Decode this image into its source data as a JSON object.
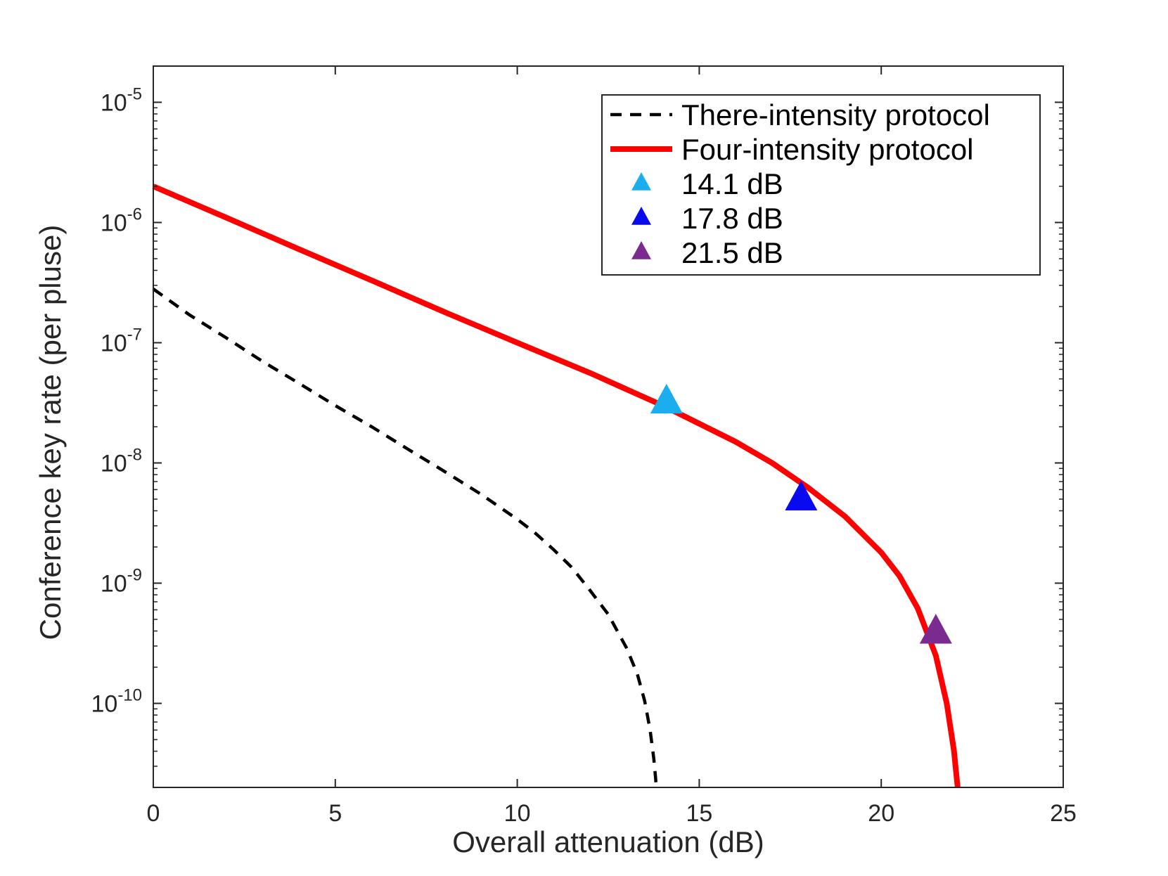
{
  "chart_data": {
    "type": "line",
    "title": "",
    "xlabel": "Overall attenuation (dB)",
    "ylabel": "Conference key rate (per pluse)",
    "xlim": [
      0,
      25
    ],
    "ylim": [
      2e-11,
      2e-05
    ],
    "yscale": "log",
    "xticks": [
      0,
      5,
      10,
      15,
      20,
      25
    ],
    "xtick_labels": [
      "0",
      "5",
      "10",
      "15",
      "20",
      "25"
    ],
    "yticks": [
      {
        "base": "10",
        "exp": "-10",
        "value": 1e-10
      },
      {
        "base": "10",
        "exp": "-9",
        "value": 1e-09
      },
      {
        "base": "10",
        "exp": "-8",
        "value": 1e-08
      },
      {
        "base": "10",
        "exp": "-7",
        "value": 1e-07
      },
      {
        "base": "10",
        "exp": "-6",
        "value": 1e-06
      },
      {
        "base": "10",
        "exp": "-5",
        "value": 1e-05
      }
    ],
    "grid": false,
    "legend_position": "top-right",
    "series": [
      {
        "name": "There-intensity protocol",
        "style": "dashed",
        "color": "#000000",
        "x": [
          0,
          1,
          2,
          3,
          4,
          5,
          6,
          7,
          8,
          9,
          10,
          10.5,
          11,
          11.5,
          12,
          12.5,
          13,
          13.3,
          13.5,
          13.65,
          13.75,
          13.8,
          13.82
        ],
        "y": [
          2.8e-07,
          1.7e-07,
          1.1e-07,
          7e-08,
          4.6e-08,
          3e-08,
          2e-08,
          1.3e-08,
          8.5e-09,
          5.5e-09,
          3.4e-09,
          2.6e-09,
          1.9e-09,
          1.35e-09,
          8.7e-10,
          5.5e-10,
          2.9e-10,
          1.75e-10,
          1.05e-10,
          6e-11,
          3.5e-11,
          2.4e-11,
          2e-11
        ]
      },
      {
        "name": "Four-intensity protocol",
        "style": "solid",
        "color": "#ff0000",
        "x": [
          0,
          2,
          4,
          6,
          8,
          10,
          12,
          14,
          16,
          17,
          18,
          19,
          20,
          20.5,
          21,
          21.5,
          21.8,
          22,
          22.05,
          22.1
        ],
        "y": [
          2e-06,
          1.1e-06,
          6e-07,
          3.3e-07,
          1.8e-07,
          1e-07,
          5.6e-08,
          3e-08,
          1.5e-08,
          1e-08,
          6.2e-09,
          3.6e-09,
          1.8e-09,
          1.15e-09,
          6.2e-10,
          2.5e-10,
          1e-10,
          4e-11,
          2.8e-11,
          2e-11
        ]
      },
      {
        "name": "14.1 dB",
        "style": "marker-triangle",
        "color": "#1aaeef",
        "x": [
          14.1
        ],
        "y": [
          3.2e-08
        ]
      },
      {
        "name": "17.8 dB",
        "style": "marker-triangle",
        "color": "#0a0aee",
        "x": [
          17.8
        ],
        "y": [
          5e-09
        ]
      },
      {
        "name": "21.5 dB",
        "style": "marker-triangle",
        "color": "#7b2b8f",
        "x": [
          21.5
        ],
        "y": [
          3.9e-10
        ]
      }
    ]
  }
}
